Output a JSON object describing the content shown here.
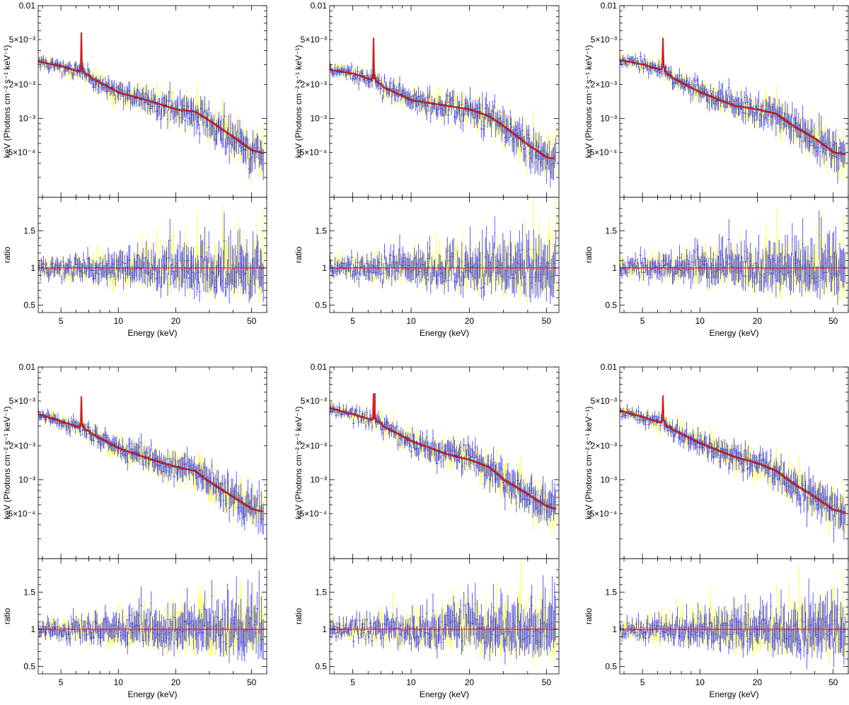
{
  "figure": {
    "panel_count": 6
  },
  "colors": {
    "data_a": "#3333ff",
    "data_b": "#ffff33",
    "model": "#ff0000",
    "frame": "#000000"
  },
  "chart_data": [
    {
      "type": "line",
      "xlabel": "Energy (keV)",
      "ylabel": "keV (Photons cm⁻² s⁻¹ keV⁻¹)",
      "ylabel_ratio": "ratio",
      "xscale": "log",
      "yscale": "log",
      "xlim": [
        3.8,
        60
      ],
      "ylim": [
        0.0002,
        0.01
      ],
      "ratio_ylim": [
        0.4,
        1.95
      ],
      "xticks": [
        "5",
        "10",
        "20",
        "50"
      ],
      "yticks": [
        "0.01",
        "5×10⁻³",
        "2×10⁻³",
        "10⁻³",
        "5×10⁻⁴"
      ],
      "ratio_yticks": [
        "0.5",
        "1",
        "1.5"
      ],
      "model": {
        "x": [
          3.8,
          5,
          6.2,
          6.38,
          6.4,
          6.42,
          6.6,
          7.0,
          7.1,
          10,
          15,
          20,
          25,
          30,
          40,
          50,
          58
        ],
        "y": [
          0.0032,
          0.0029,
          0.0026,
          0.0028,
          0.0058,
          0.0028,
          0.0025,
          0.0024,
          0.0023,
          0.0017,
          0.0014,
          0.0012,
          0.00115,
          0.00095,
          0.00068,
          0.00052,
          0.00049
        ]
      }
    },
    {
      "type": "line",
      "xlabel": "Energy (keV)",
      "ylabel": "keV (Photons cm⁻² s⁻¹ keV⁻¹)",
      "ylabel_ratio": "ratio",
      "xscale": "log",
      "yscale": "log",
      "xlim": [
        3.8,
        58
      ],
      "ylim": [
        0.0002,
        0.01
      ],
      "ratio_ylim": [
        0.4,
        1.95
      ],
      "xticks": [
        "5",
        "10",
        "20",
        "50"
      ],
      "yticks": [
        "0.01",
        "5×10⁻³",
        "2×10⁻³",
        "10⁻³",
        "5×10⁻⁴"
      ],
      "ratio_yticks": [
        "0.5",
        "1",
        "1.5"
      ],
      "model": {
        "x": [
          3.8,
          5,
          6.2,
          6.38,
          6.4,
          6.42,
          6.6,
          7.0,
          7.1,
          10,
          15,
          20,
          25,
          30,
          40,
          50,
          55
        ],
        "y": [
          0.0027,
          0.0025,
          0.0022,
          0.0024,
          0.0052,
          0.0024,
          0.0021,
          0.002,
          0.0019,
          0.00145,
          0.0013,
          0.0012,
          0.00105,
          0.00085,
          0.00058,
          0.00045,
          0.00044
        ]
      }
    },
    {
      "type": "line",
      "xlabel": "Energy (keV)",
      "ylabel": "keV (Photons cm⁻² s⁻¹ keV⁻¹)",
      "ylabel_ratio": "ratio",
      "xscale": "log",
      "yscale": "log",
      "xlim": [
        3.8,
        60
      ],
      "ylim": [
        0.0002,
        0.01
      ],
      "ratio_ylim": [
        0.4,
        1.95
      ],
      "xticks": [
        "5",
        "10",
        "20",
        "50"
      ],
      "yticks": [
        "0.01",
        "5×10⁻³",
        "2×10⁻³",
        "10⁻³",
        "5×10⁻⁴"
      ],
      "ratio_yticks": [
        "0.5",
        "1",
        "1.5"
      ],
      "model": {
        "x": [
          3.8,
          5,
          6.2,
          6.38,
          6.4,
          6.42,
          6.6,
          7.0,
          7.1,
          10,
          15,
          20,
          25,
          30,
          40,
          50,
          58
        ],
        "y": [
          0.0033,
          0.003,
          0.0027,
          0.0029,
          0.0052,
          0.0029,
          0.0025,
          0.0024,
          0.0023,
          0.0017,
          0.0013,
          0.0012,
          0.0011,
          0.00088,
          0.00066,
          0.0005,
          0.00048
        ]
      }
    },
    {
      "type": "line",
      "xlabel": "Energy (keV)",
      "ylabel": "keV (Photons cm⁻² s⁻¹ keV⁻¹)",
      "ylabel_ratio": "ratio",
      "xscale": "log",
      "yscale": "log",
      "xlim": [
        3.8,
        60
      ],
      "ylim": [
        0.0002,
        0.01
      ],
      "ratio_ylim": [
        0.4,
        1.95
      ],
      "xticks": [
        "5",
        "10",
        "20",
        "50"
      ],
      "yticks": [
        "0.01",
        "5×10⁻³",
        "2×10⁻³",
        "10⁻³",
        "5×10⁻⁴"
      ],
      "ratio_yticks": [
        "0.5",
        "1",
        "1.5"
      ],
      "model": {
        "x": [
          3.8,
          5,
          6.2,
          6.38,
          6.4,
          6.42,
          6.6,
          7.0,
          7.1,
          10,
          15,
          20,
          25,
          30,
          40,
          50,
          57
        ],
        "y": [
          0.0038,
          0.0033,
          0.0029,
          0.0031,
          0.0055,
          0.0031,
          0.0028,
          0.0027,
          0.0026,
          0.0019,
          0.0015,
          0.0013,
          0.0012,
          0.00095,
          0.0007,
          0.00055,
          0.00052
        ]
      }
    },
    {
      "type": "line",
      "xlabel": "Energy (keV)",
      "ylabel": "keV (Photons cm⁻² s⁻¹ keV⁻¹)",
      "ylabel_ratio": "ratio",
      "xscale": "log",
      "yscale": "log",
      "xlim": [
        3.8,
        58
      ],
      "ylim": [
        0.0002,
        0.01
      ],
      "ratio_ylim": [
        0.4,
        1.95
      ],
      "xticks": [
        "5",
        "10",
        "20",
        "50"
      ],
      "yticks": [
        "0.01",
        "5×10⁻³",
        "2×10⁻³",
        "10⁻³",
        "5×10⁻⁴"
      ],
      "ratio_yticks": [
        "0.5",
        "1",
        "1.5"
      ],
      "model": {
        "x": [
          3.8,
          5,
          6.2,
          6.38,
          6.4,
          6.42,
          6.6,
          7.0,
          7.1,
          10,
          15,
          20,
          25,
          30,
          40,
          50,
          56
        ],
        "y": [
          0.0043,
          0.0038,
          0.0034,
          0.0036,
          0.0058,
          0.0036,
          0.0033,
          0.0032,
          0.003,
          0.0022,
          0.0017,
          0.0015,
          0.0013,
          0.001,
          0.00074,
          0.00058,
          0.00055
        ]
      }
    },
    {
      "type": "line",
      "xlabel": "Energy (keV)",
      "ylabel": "keV (Photons cm⁻² s⁻¹ keV⁻¹)",
      "ylabel_ratio": "ratio",
      "xscale": "log",
      "yscale": "log",
      "xlim": [
        3.8,
        60
      ],
      "ylim": [
        0.0002,
        0.01
      ],
      "ratio_ylim": [
        0.4,
        1.95
      ],
      "xticks": [
        "5",
        "10",
        "20",
        "50"
      ],
      "yticks": [
        "0.01",
        "5×10⁻³",
        "2×10⁻³",
        "10⁻³",
        "5×10⁻⁴"
      ],
      "ratio_yticks": [
        "0.5",
        "1",
        "1.5"
      ],
      "model": {
        "x": [
          3.8,
          5,
          6.2,
          6.38,
          6.4,
          6.42,
          6.6,
          7.0,
          7.1,
          10,
          15,
          20,
          25,
          30,
          40,
          50,
          58
        ],
        "y": [
          0.0041,
          0.0036,
          0.0032,
          0.0034,
          0.0056,
          0.0034,
          0.003,
          0.0029,
          0.0028,
          0.0021,
          0.0016,
          0.0014,
          0.0012,
          0.00095,
          0.0007,
          0.00054,
          0.00051
        ]
      }
    }
  ]
}
